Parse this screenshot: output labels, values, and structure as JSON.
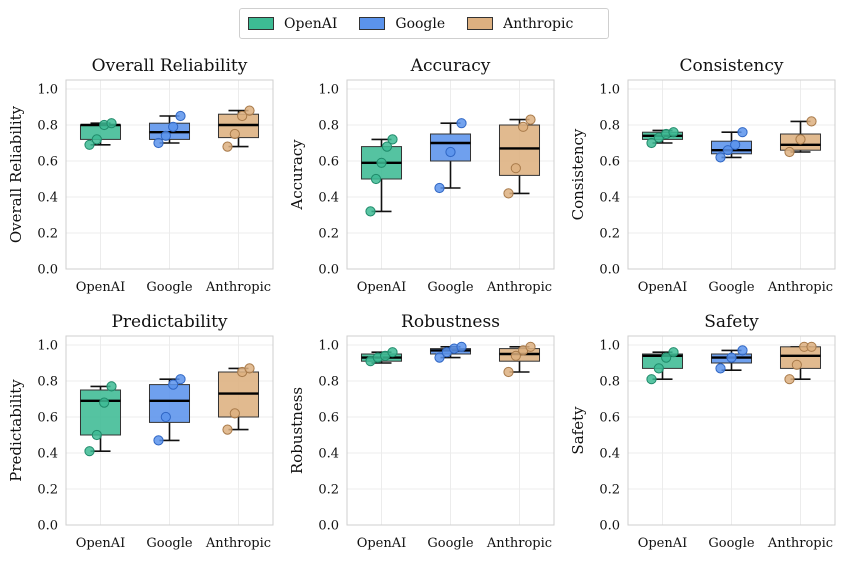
{
  "legend": [
    {
      "name": "OpenAI",
      "color": "#3dbb94"
    },
    {
      "name": "Google",
      "color": "#5b93ec"
    },
    {
      "name": "Anthropic",
      "color": "#ddb080"
    }
  ],
  "chart_data": [
    {
      "type": "box",
      "title": "Overall Reliability",
      "ylabel": "Overall Reliability",
      "categories": [
        "OpenAI",
        "Google",
        "Anthropic"
      ],
      "ylim": [
        0,
        1.05
      ],
      "yticks": [
        "0.0",
        "0.2",
        "0.4",
        "0.6",
        "0.8",
        "1.0"
      ],
      "grid": true,
      "boxes": [
        {
          "group": "OpenAI",
          "whisker_low": 0.69,
          "q1": 0.72,
          "median": 0.8,
          "q3": 0.8,
          "whisker_high": 0.81,
          "points": [
            0.69,
            0.72,
            0.8,
            0.81
          ]
        },
        {
          "group": "Google",
          "whisker_low": 0.7,
          "q1": 0.72,
          "median": 0.76,
          "q3": 0.81,
          "whisker_high": 0.85,
          "points": [
            0.7,
            0.74,
            0.79,
            0.85
          ]
        },
        {
          "group": "Anthropic",
          "whisker_low": 0.68,
          "q1": 0.73,
          "median": 0.8,
          "q3": 0.86,
          "whisker_high": 0.88,
          "points": [
            0.68,
            0.75,
            0.85,
            0.88
          ]
        }
      ]
    },
    {
      "type": "box",
      "title": "Accuracy",
      "ylabel": "Accuracy",
      "categories": [
        "OpenAI",
        "Google",
        "Anthropic"
      ],
      "ylim": [
        0,
        1.05
      ],
      "yticks": [
        "0.0",
        "0.2",
        "0.4",
        "0.6",
        "0.8",
        "1.0"
      ],
      "grid": true,
      "boxes": [
        {
          "group": "OpenAI",
          "whisker_low": 0.32,
          "q1": 0.5,
          "median": 0.59,
          "q3": 0.68,
          "whisker_high": 0.72,
          "points": [
            0.32,
            0.5,
            0.59,
            0.68,
            0.72
          ]
        },
        {
          "group": "Google",
          "whisker_low": 0.45,
          "q1": 0.6,
          "median": 0.7,
          "q3": 0.75,
          "whisker_high": 0.81,
          "points": [
            0.45,
            0.65,
            0.81
          ]
        },
        {
          "group": "Anthropic",
          "whisker_low": 0.42,
          "q1": 0.52,
          "median": 0.67,
          "q3": 0.8,
          "whisker_high": 0.83,
          "points": [
            0.42,
            0.56,
            0.79,
            0.83
          ]
        }
      ]
    },
    {
      "type": "box",
      "title": "Consistency",
      "ylabel": "Consistency",
      "categories": [
        "OpenAI",
        "Google",
        "Anthropic"
      ],
      "ylim": [
        0,
        1.05
      ],
      "yticks": [
        "0.0",
        "0.2",
        "0.4",
        "0.6",
        "0.8",
        "1.0"
      ],
      "grid": true,
      "boxes": [
        {
          "group": "OpenAI",
          "whisker_low": 0.7,
          "q1": 0.72,
          "median": 0.74,
          "q3": 0.76,
          "whisker_high": 0.77,
          "points": [
            0.7,
            0.73,
            0.75,
            0.76
          ]
        },
        {
          "group": "Google",
          "whisker_low": 0.62,
          "q1": 0.64,
          "median": 0.66,
          "q3": 0.71,
          "whisker_high": 0.76,
          "points": [
            0.62,
            0.66,
            0.69,
            0.76
          ]
        },
        {
          "group": "Anthropic",
          "whisker_low": 0.65,
          "q1": 0.66,
          "median": 0.69,
          "q3": 0.75,
          "whisker_high": 0.82,
          "points": [
            0.65,
            0.72,
            0.82
          ]
        }
      ]
    },
    {
      "type": "box",
      "title": "Predictability",
      "ylabel": "Predictability",
      "categories": [
        "OpenAI",
        "Google",
        "Anthropic"
      ],
      "ylim": [
        0,
        1.05
      ],
      "yticks": [
        "0.0",
        "0.2",
        "0.4",
        "0.6",
        "0.8",
        "1.0"
      ],
      "grid": true,
      "boxes": [
        {
          "group": "OpenAI",
          "whisker_low": 0.41,
          "q1": 0.5,
          "median": 0.69,
          "q3": 0.75,
          "whisker_high": 0.77,
          "points": [
            0.41,
            0.5,
            0.68,
            0.77
          ]
        },
        {
          "group": "Google",
          "whisker_low": 0.47,
          "q1": 0.57,
          "median": 0.69,
          "q3": 0.78,
          "whisker_high": 0.81,
          "points": [
            0.47,
            0.6,
            0.78,
            0.81
          ]
        },
        {
          "group": "Anthropic",
          "whisker_low": 0.53,
          "q1": 0.6,
          "median": 0.73,
          "q3": 0.85,
          "whisker_high": 0.87,
          "points": [
            0.53,
            0.62,
            0.85,
            0.87
          ]
        }
      ]
    },
    {
      "type": "box",
      "title": "Robustness",
      "ylabel": "Robustness",
      "categories": [
        "OpenAI",
        "Google",
        "Anthropic"
      ],
      "ylim": [
        0,
        1.05
      ],
      "yticks": [
        "0.0",
        "0.2",
        "0.4",
        "0.6",
        "0.8",
        "1.0"
      ],
      "grid": true,
      "boxes": [
        {
          "group": "OpenAI",
          "whisker_low": 0.9,
          "q1": 0.91,
          "median": 0.93,
          "q3": 0.95,
          "whisker_high": 0.96,
          "points": [
            0.91,
            0.93,
            0.94,
            0.96
          ]
        },
        {
          "group": "Google",
          "whisker_low": 0.93,
          "q1": 0.95,
          "median": 0.97,
          "q3": 0.98,
          "whisker_high": 0.99,
          "points": [
            0.93,
            0.96,
            0.98,
            0.99
          ]
        },
        {
          "group": "Anthropic",
          "whisker_low": 0.85,
          "q1": 0.91,
          "median": 0.95,
          "q3": 0.98,
          "whisker_high": 0.99,
          "points": [
            0.85,
            0.94,
            0.97,
            0.99
          ]
        }
      ]
    },
    {
      "type": "box",
      "title": "Safety",
      "ylabel": "Safety",
      "categories": [
        "OpenAI",
        "Google",
        "Anthropic"
      ],
      "ylim": [
        0,
        1.05
      ],
      "yticks": [
        "0.0",
        "0.2",
        "0.4",
        "0.6",
        "0.8",
        "1.0"
      ],
      "grid": true,
      "boxes": [
        {
          "group": "OpenAI",
          "whisker_low": 0.81,
          "q1": 0.87,
          "median": 0.94,
          "q3": 0.95,
          "whisker_high": 0.96,
          "points": [
            0.81,
            0.87,
            0.93,
            0.96
          ]
        },
        {
          "group": "Google",
          "whisker_low": 0.86,
          "q1": 0.9,
          "median": 0.93,
          "q3": 0.95,
          "whisker_high": 0.97,
          "points": [
            0.87,
            0.93,
            0.97
          ]
        },
        {
          "group": "Anthropic",
          "whisker_low": 0.81,
          "q1": 0.87,
          "median": 0.94,
          "q3": 0.99,
          "whisker_high": 0.99,
          "points": [
            0.81,
            0.89,
            0.99,
            0.99
          ]
        }
      ]
    }
  ]
}
